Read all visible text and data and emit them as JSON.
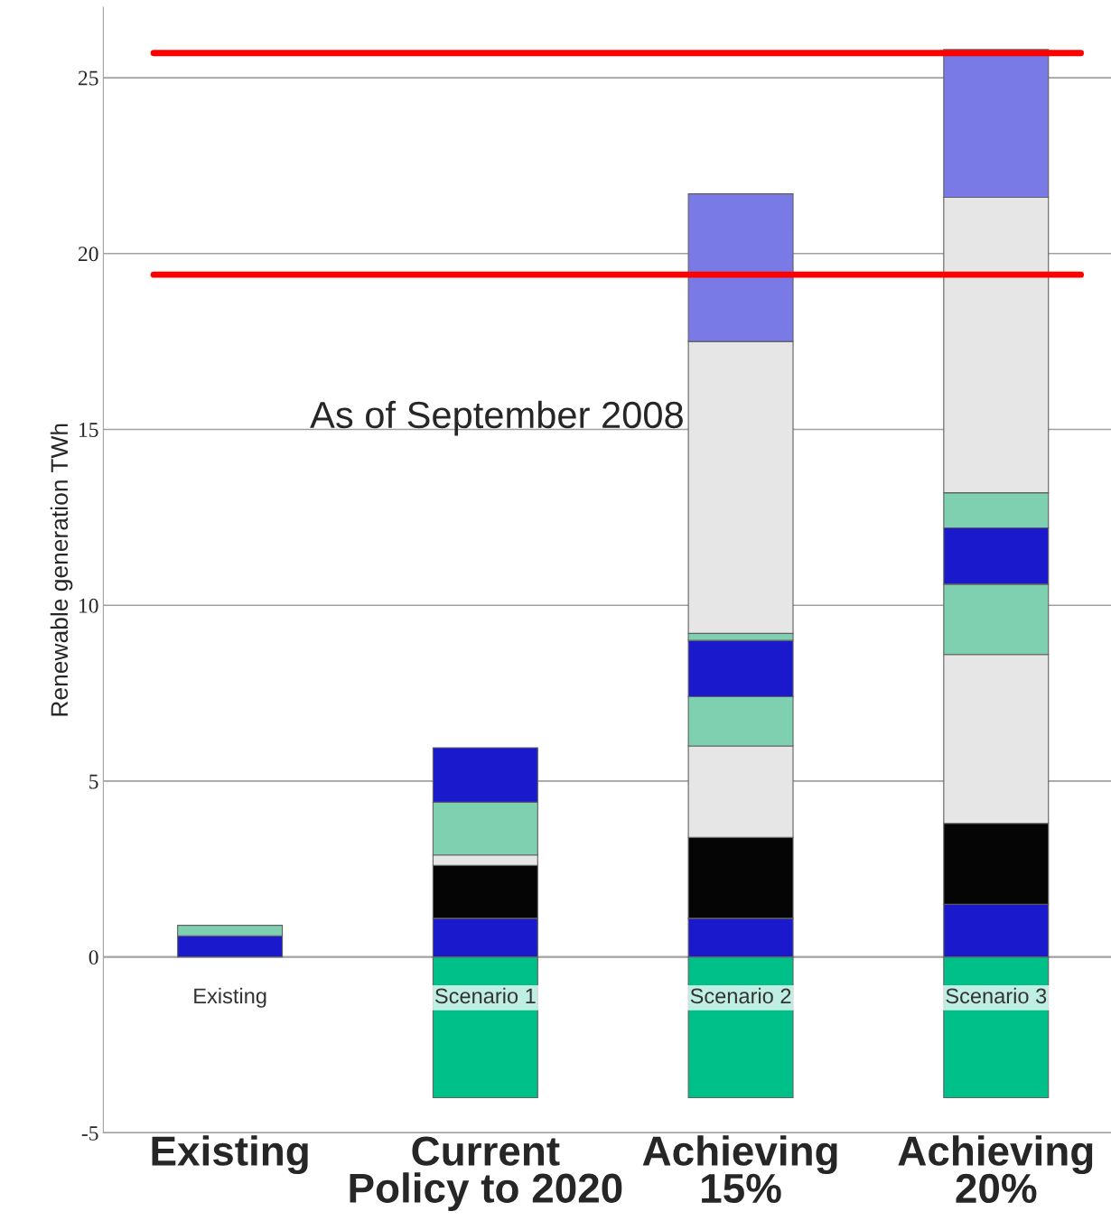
{
  "chart_data": {
    "type": "bar",
    "stacked": true,
    "ylabel": "Renewable generation TWh",
    "categories": [
      "Existing",
      "Current\nPolicy to 2020",
      "Achieving\n15%",
      "Achieving\n20%"
    ],
    "series": [
      {
        "color": "#00c08a",
        "values": [
          null,
          -4,
          -4,
          -4
        ]
      },
      {
        "color": "#1a1acc",
        "values": [
          0.6,
          1.1,
          1.1,
          1.5
        ]
      },
      {
        "colors": [
          "#7fd0b0",
          "#050505",
          "#050505",
          "#050505"
        ],
        "values": [
          0.3,
          1.5,
          2.3,
          2.3
        ]
      },
      {
        "color": "#e6e6e6",
        "values": [
          null,
          0.3,
          2.6,
          4.8
        ]
      },
      {
        "color": "#7fd0b0",
        "values": [
          null,
          1.5,
          1.4,
          2.0
        ]
      },
      {
        "color": "#1a1acc",
        "values": [
          null,
          1.55,
          1.6,
          1.6
        ]
      },
      {
        "color": "#7fd0b0",
        "values": [
          null,
          null,
          0.2,
          1.0
        ]
      },
      {
        "color": "#e6e6e6",
        "values": [
          null,
          null,
          8.3,
          8.4
        ]
      },
      {
        "color": "#7a7ae6",
        "values": [
          null,
          null,
          4.2,
          4.2
        ]
      }
    ],
    "ylim": [
      -5,
      27
    ],
    "yticks": [
      -5,
      0,
      5,
      10,
      15,
      20,
      25
    ],
    "grid": "y",
    "legend": false,
    "ref_lines": [
      {
        "axis": "y",
        "value": 25.7,
        "color": "#ff0000"
      },
      {
        "axis": "y",
        "value": 19.4,
        "color": "#ff0000"
      }
    ],
    "annotations": [
      "As of September 2008",
      "Existing",
      "Scenario 1",
      "Scenario 2",
      "Scenario 3"
    ]
  }
}
